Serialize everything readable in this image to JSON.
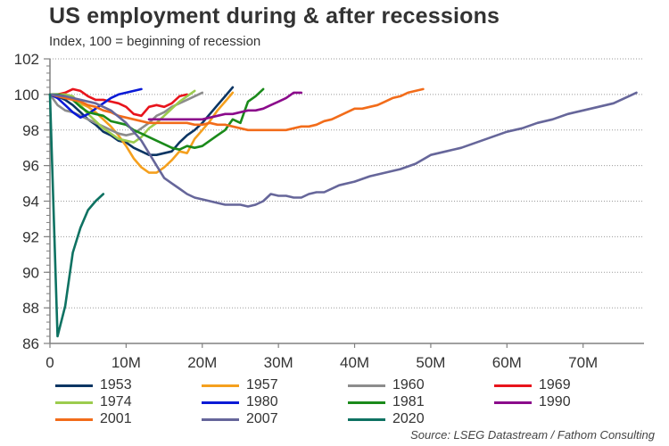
{
  "header": {
    "title": "US employment during & after recessions",
    "subtitle": "Index, 100 = beginning of recession"
  },
  "source": "Source: LSEG Datastream / Fathom Consulting",
  "chart_data": {
    "type": "line",
    "title": "US employment during & after recessions",
    "subtitle": "Index, 100 = beginning of recession",
    "xlabel": "",
    "ylabel": "",
    "xlim": [
      0,
      78
    ],
    "ylim": [
      86,
      102
    ],
    "x_ticks": [
      0,
      10,
      20,
      30,
      40,
      50,
      60,
      70
    ],
    "x_tick_labels": [
      "0",
      "10M",
      "20M",
      "30M",
      "40M",
      "50M",
      "60M",
      "70M"
    ],
    "y_ticks": [
      86,
      88,
      90,
      92,
      94,
      96,
      98,
      100,
      102
    ],
    "y_tick_labels": [
      "86",
      "88",
      "90",
      "92",
      "94",
      "96",
      "98",
      "100",
      "102"
    ],
    "grid": "horizontal-dotted",
    "legend_position": "bottom",
    "series": [
      {
        "name": "1953",
        "color": "#0b3563",
        "x": [
          0,
          1,
          2,
          3,
          4,
          5,
          6,
          7,
          8,
          9,
          10,
          11,
          12,
          13,
          14,
          15,
          16,
          17,
          18,
          19,
          20,
          21,
          22,
          23,
          24
        ],
        "values": [
          100,
          99.9,
          99.7,
          99.4,
          99.0,
          98.6,
          98.3,
          97.9,
          97.7,
          97.4,
          97.3,
          97.0,
          96.8,
          96.6,
          96.6,
          96.7,
          96.8,
          97.3,
          97.7,
          98.0,
          98.4,
          98.9,
          99.4,
          99.9,
          100.4
        ]
      },
      {
        "name": "1957",
        "color": "#f5a01e",
        "x": [
          0,
          1,
          2,
          3,
          4,
          5,
          6,
          7,
          8,
          9,
          10,
          11,
          12,
          13,
          14,
          15,
          16,
          17,
          18,
          19,
          20,
          21,
          22,
          23,
          24
        ],
        "values": [
          100,
          99.9,
          99.8,
          99.7,
          99.5,
          99.3,
          99.0,
          98.6,
          98.2,
          97.7,
          97.1,
          96.4,
          95.9,
          95.6,
          95.6,
          95.9,
          96.3,
          96.8,
          96.7,
          97.5,
          98.0,
          98.5,
          99.1,
          99.6,
          100.1
        ]
      },
      {
        "name": "1960",
        "color": "#8c8c8c",
        "x": [
          0,
          1,
          2,
          3,
          4,
          5,
          6,
          7,
          8,
          9,
          10,
          11,
          12,
          13,
          14,
          15,
          16,
          17,
          18,
          19,
          20
        ],
        "values": [
          100,
          99.4,
          99.1,
          99.0,
          98.8,
          98.6,
          98.4,
          98.2,
          98.0,
          97.8,
          97.7,
          97.8,
          98.1,
          98.4,
          98.8,
          99.0,
          99.3,
          99.5,
          99.7,
          99.9,
          100.1
        ]
      },
      {
        "name": "1969",
        "color": "#e8141c",
        "x": [
          0,
          1,
          2,
          3,
          4,
          5,
          6,
          7,
          8,
          9,
          10,
          11,
          12,
          13,
          14,
          15,
          16,
          17,
          18
        ],
        "values": [
          100,
          100.0,
          100.1,
          100.3,
          100.2,
          99.9,
          99.7,
          99.7,
          99.6,
          99.5,
          99.3,
          98.9,
          98.8,
          99.3,
          99.4,
          99.3,
          99.5,
          99.9,
          100.0
        ]
      },
      {
        "name": "1974",
        "color": "#9ccc4e",
        "x": [
          0,
          1,
          2,
          3,
          4,
          5,
          6,
          7,
          8,
          9,
          10,
          11,
          12,
          13,
          14,
          15,
          16,
          17,
          18,
          19
        ],
        "values": [
          100,
          100.0,
          100.0,
          99.9,
          99.4,
          98.9,
          98.5,
          98.1,
          97.8,
          97.5,
          97.4,
          97.3,
          97.6,
          98.1,
          98.4,
          98.8,
          99.2,
          99.6,
          99.9,
          100.2
        ]
      },
      {
        "name": "1980",
        "color": "#0a1ad6",
        "x": [
          0,
          1,
          2,
          3,
          4,
          5,
          6,
          7,
          8,
          9,
          10,
          11,
          12
        ],
        "values": [
          100,
          99.8,
          99.4,
          99.0,
          98.7,
          98.9,
          99.2,
          99.5,
          99.8,
          100.0,
          100.1,
          100.2,
          100.3
        ]
      },
      {
        "name": "1981",
        "color": "#1a8a1a",
        "x": [
          0,
          1,
          2,
          3,
          4,
          5,
          6,
          7,
          8,
          9,
          10,
          11,
          12,
          13,
          14,
          15,
          16,
          17,
          18,
          19,
          20,
          21,
          22,
          23,
          24,
          25,
          26,
          27,
          28
        ],
        "values": [
          100,
          100.0,
          99.9,
          99.7,
          99.3,
          99.0,
          98.9,
          98.8,
          98.5,
          98.4,
          98.3,
          98.0,
          97.8,
          97.6,
          97.4,
          97.2,
          97.0,
          96.9,
          97.1,
          97.0,
          97.1,
          97.4,
          97.7,
          98.0,
          98.6,
          98.4,
          99.6,
          99.9,
          100.3
        ]
      },
      {
        "name": "1990",
        "color": "#8b0a8b",
        "x": [
          13,
          14,
          15,
          16,
          17,
          18,
          19,
          20,
          21,
          22,
          23,
          24,
          25,
          26,
          27,
          28,
          29,
          30,
          31,
          32,
          33
        ],
        "values": [
          98.6,
          98.6,
          98.6,
          98.6,
          98.6,
          98.6,
          98.6,
          98.6,
          98.7,
          98.8,
          98.9,
          98.9,
          99.0,
          99.1,
          99.1,
          99.2,
          99.4,
          99.6,
          99.8,
          100.1,
          100.1
        ]
      },
      {
        "name": "2001",
        "color": "#f26c1a",
        "x": [
          0,
          1,
          2,
          3,
          4,
          5,
          6,
          7,
          8,
          9,
          10,
          11,
          12,
          13,
          14,
          15,
          16,
          17,
          18,
          19,
          20,
          21,
          22,
          23,
          24,
          25,
          26,
          27,
          28,
          29,
          30,
          31,
          32,
          33,
          34,
          35,
          36,
          37,
          38,
          39,
          40,
          41,
          42,
          43,
          44,
          45,
          46,
          47,
          48,
          49
        ],
        "values": [
          100,
          99.9,
          99.8,
          99.7,
          99.6,
          99.4,
          99.3,
          99.1,
          99.0,
          98.8,
          98.7,
          98.6,
          98.5,
          98.4,
          98.4,
          98.4,
          98.4,
          98.4,
          98.4,
          98.3,
          98.3,
          98.4,
          98.3,
          98.3,
          98.2,
          98.1,
          98.0,
          98.0,
          98.0,
          98.0,
          98.0,
          98.0,
          98.1,
          98.2,
          98.2,
          98.3,
          98.5,
          98.6,
          98.8,
          99.0,
          99.2,
          99.2,
          99.3,
          99.4,
          99.6,
          99.8,
          99.9,
          100.1,
          100.2,
          100.3
        ]
      },
      {
        "name": "2007",
        "color": "#66669a",
        "x": [
          0,
          2,
          4,
          6,
          8,
          10,
          12,
          14,
          15,
          16,
          17,
          18,
          19,
          20,
          21,
          22,
          23,
          24,
          25,
          26,
          27,
          28,
          29,
          30,
          31,
          32,
          33,
          34,
          35,
          36,
          38,
          40,
          42,
          44,
          46,
          48,
          50,
          52,
          54,
          56,
          58,
          60,
          62,
          64,
          66,
          68,
          70,
          72,
          74,
          76,
          77
        ],
        "values": [
          100,
          99.9,
          99.7,
          99.5,
          99.1,
          98.4,
          97.4,
          96.0,
          95.3,
          95.0,
          94.7,
          94.4,
          94.2,
          94.1,
          94.0,
          93.9,
          93.8,
          93.8,
          93.8,
          93.7,
          93.8,
          94.0,
          94.4,
          94.3,
          94.3,
          94.2,
          94.2,
          94.4,
          94.5,
          94.5,
          94.9,
          95.1,
          95.4,
          95.6,
          95.8,
          96.1,
          96.6,
          96.8,
          97.0,
          97.3,
          97.6,
          97.9,
          98.1,
          98.4,
          98.6,
          98.9,
          99.1,
          99.3,
          99.5,
          99.9,
          100.1
        ]
      },
      {
        "name": "2020",
        "color": "#0e7262",
        "x": [
          0,
          1,
          2,
          3,
          4,
          5,
          6,
          7
        ],
        "values": [
          100,
          86.4,
          88.1,
          91.1,
          92.5,
          93.5,
          94.0,
          94.4
        ]
      }
    ]
  }
}
